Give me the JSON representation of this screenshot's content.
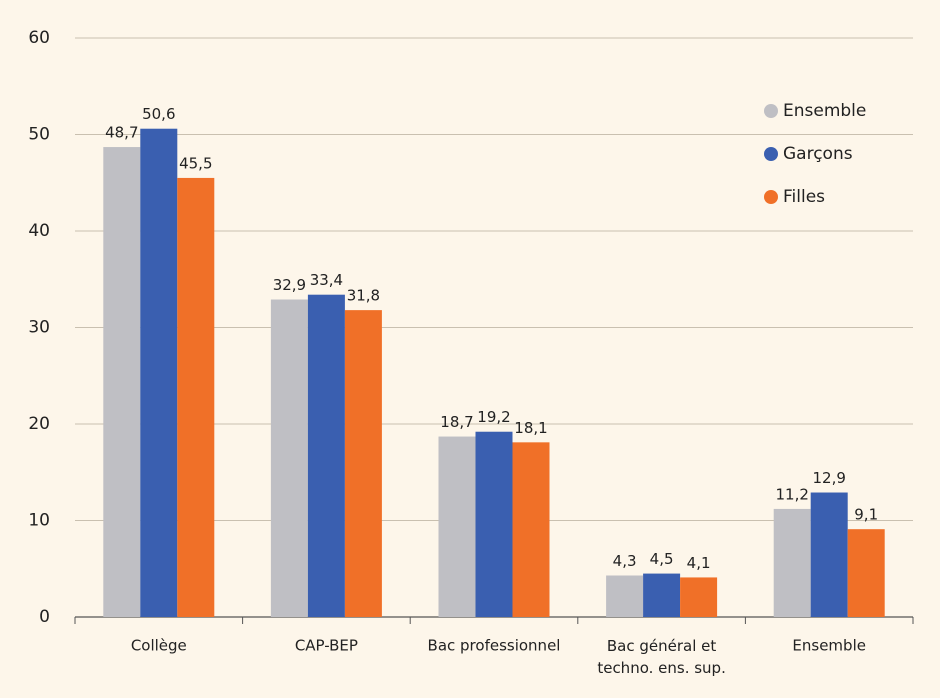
{
  "chart_data": {
    "type": "bar",
    "categories": [
      "Collège",
      "CAP-BEP",
      "Bac professionnel",
      "Bac général et\ntechno. ens. sup.",
      "Ensemble"
    ],
    "series": [
      {
        "name": "Ensemble",
        "color": "#bfbfc4",
        "values": [
          48.7,
          32.9,
          18.7,
          4.3,
          11.2
        ],
        "value_labels": [
          "48,7",
          "32,9",
          "18,7",
          "4,3",
          "11,2"
        ]
      },
      {
        "name": "Garçons",
        "color": "#3a5fb0",
        "values": [
          50.6,
          33.4,
          19.2,
          4.5,
          12.9
        ],
        "value_labels": [
          "50,6",
          "33,4",
          "19,2",
          "4,5",
          "12,9"
        ]
      },
      {
        "name": "Filles",
        "color": "#f07028",
        "values": [
          45.5,
          31.8,
          18.1,
          4.1,
          9.1
        ],
        "value_labels": [
          "45,5",
          "31,8",
          "18,1",
          "4,1",
          "9,1"
        ]
      }
    ],
    "ylim": [
      0,
      60
    ],
    "yticks": [
      0,
      10,
      20,
      30,
      40,
      50,
      60
    ],
    "grid": true,
    "legend": "top-right"
  }
}
